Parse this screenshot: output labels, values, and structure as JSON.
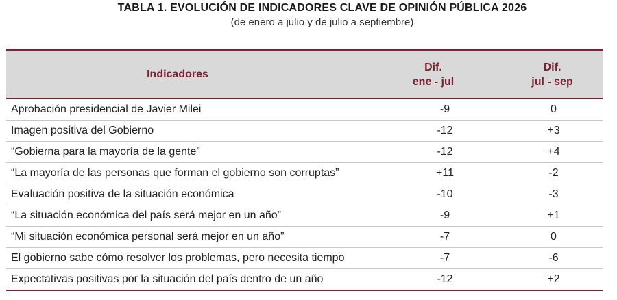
{
  "title": "TABLA 1. EVOLUCIÓN DE INDICADORES CLAVE DE OPINIÓN PÚBLICA 2026",
  "subtitle": "(de enero a julio y de julio a septiembre)",
  "headers": {
    "indicator": "Indicadores",
    "diff_a_line1": "Dif.",
    "diff_a_line2": "ene - jul",
    "diff_b_line1": "Dif.",
    "diff_b_line2": "jul - sep"
  },
  "rows": [
    {
      "indicator": "Aprobación presidencial de Javier Milei",
      "diff_a": "-9",
      "diff_b": "0"
    },
    {
      "indicator": "Imagen positiva del Gobierno",
      "diff_a": "-12",
      "diff_b": "+3"
    },
    {
      "indicator": "“Gobierna para la mayoría de la gente”",
      "diff_a": "-12",
      "diff_b": "+4"
    },
    {
      "indicator": "“La mayoría de las personas que forman el gobierno son corruptas”",
      "diff_a": "+11",
      "diff_b": "-2"
    },
    {
      "indicator": "Evaluación positiva de la situación económica",
      "diff_a": "-10",
      "diff_b": "-3"
    },
    {
      "indicator": "“La situación económica del país será mejor en un año”",
      "diff_a": "-9",
      "diff_b": "+1"
    },
    {
      "indicator": "“Mi situación económica personal será mejor en un año”",
      "diff_a": "-7",
      "diff_b": "0"
    },
    {
      "indicator": "El gobierno sabe cómo resolver los problemas, pero necesita tiempo",
      "diff_a": "-7",
      "diff_b": "-6"
    },
    {
      "indicator": "Expectativas positivas por la situación del país dentro de un año",
      "diff_a": "-12",
      "diff_b": "+2"
    }
  ],
  "colors": {
    "accent": "#7a2231",
    "header_bg": "#d9d9d9",
    "row_divider": "#c9c9c9"
  }
}
